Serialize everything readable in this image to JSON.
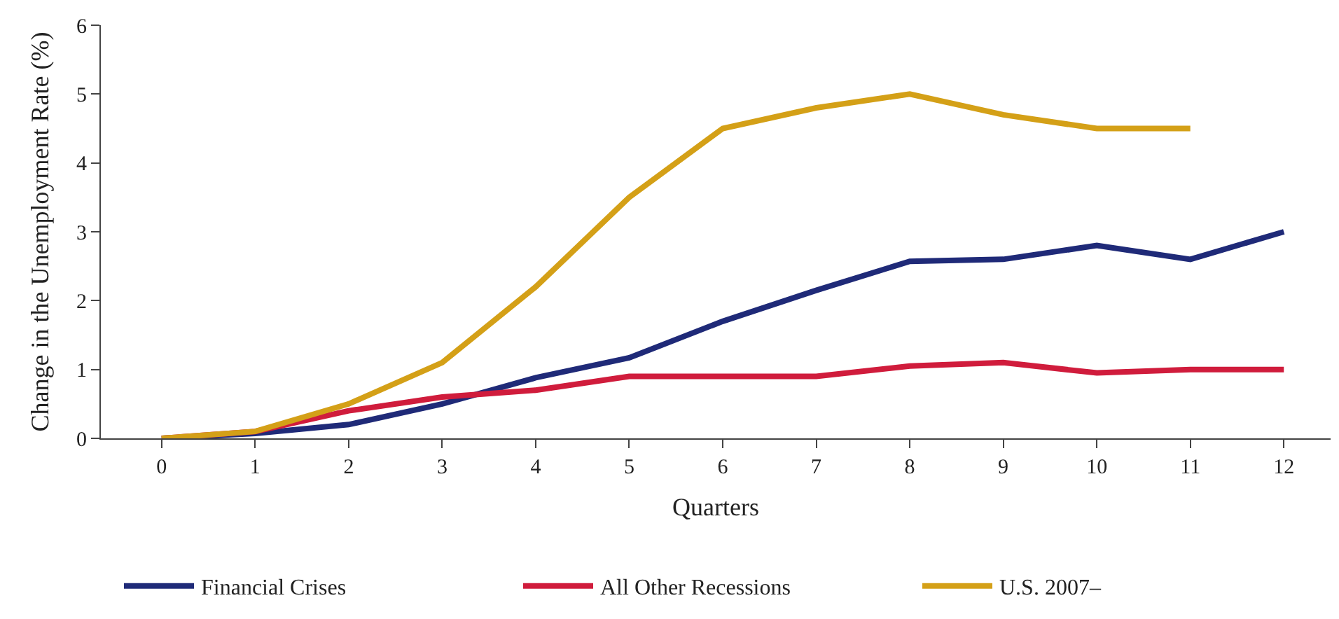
{
  "chart_data": {
    "type": "line",
    "xlabel": "Quarters",
    "ylabel": "Change in the Unemployment Rate (%)",
    "x": [
      0,
      1,
      2,
      3,
      4,
      5,
      6,
      7,
      8,
      9,
      10,
      11,
      12
    ],
    "series": [
      {
        "name": "Financial Crises",
        "color": "#1f2a78",
        "values": [
          0,
          0.07,
          0.2,
          0.5,
          0.88,
          1.17,
          1.7,
          2.15,
          2.57,
          2.6,
          2.8,
          2.6,
          3.0
        ]
      },
      {
        "name": "All Other Recessions",
        "color": "#d01c3c",
        "values": [
          0,
          0.1,
          0.4,
          0.6,
          0.7,
          0.9,
          0.9,
          0.9,
          1.05,
          1.1,
          0.95,
          1.0,
          1.0
        ]
      },
      {
        "name": "U.S. 2007–",
        "color": "#d4a017",
        "values": [
          0,
          0.1,
          0.5,
          1.1,
          2.2,
          3.5,
          4.5,
          4.8,
          5.0,
          4.7,
          4.5,
          4.5,
          null
        ]
      }
    ],
    "xlim": [
      -0.65,
      12.5
    ],
    "ylim": [
      0,
      6
    ],
    "xticks": [
      0,
      1,
      2,
      3,
      4,
      5,
      6,
      7,
      8,
      9,
      10,
      11,
      12
    ],
    "yticks": [
      0,
      1,
      2,
      3,
      4,
      5,
      6
    ],
    "legend": "bottom",
    "marker": "none",
    "line_style": "solid"
  }
}
